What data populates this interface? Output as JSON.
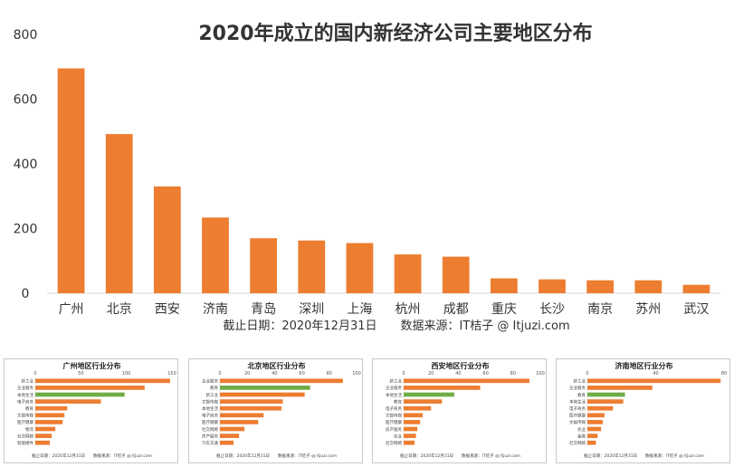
{
  "chart_data": [
    {
      "type": "bar",
      "title": "2020年成立的国内新经济公司主要地区分布",
      "categories": [
        "广州",
        "北京",
        "西安",
        "济南",
        "青岛",
        "深圳",
        "上海",
        "杭州",
        "成都",
        "重庆",
        "长沙",
        "南京",
        "苏州",
        "武汉"
      ],
      "values": [
        695,
        492,
        330,
        234,
        170,
        163,
        155,
        120,
        113,
        46,
        43,
        40,
        40,
        26
      ],
      "ylim": [
        0,
        800
      ],
      "yticks": [
        0,
        200,
        400,
        600,
        800
      ],
      "xlabel": "",
      "ylabel": "",
      "footnote": "截止日期：2020年12月31日　　数据来源：IT桔子 @ Itjuzi.com",
      "colors": {
        "bar": "#ED7D31"
      }
    },
    {
      "type": "bar",
      "orientation": "horizontal",
      "title": "广州地区行业分布",
      "categories": [
        "新工业",
        "企业服务",
        "本地生活",
        "电子商务",
        "教育",
        "文娱传媒",
        "医疗健康",
        "物流",
        "社交网络",
        "智能硬件"
      ],
      "values": [
        148,
        120,
        98,
        72,
        35,
        32,
        30,
        22,
        18,
        16
      ],
      "highlight": 2,
      "xlim": [
        0,
        150
      ],
      "xticks": [
        0,
        50,
        100,
        150
      ],
      "footnote": "截止日期：2020年12月31日　　数据来源：IT桔子 @ Itjuzi.com"
    },
    {
      "type": "bar",
      "orientation": "horizontal",
      "title": "北京地区行业分布",
      "categories": [
        "企业服务",
        "教育",
        "新工业",
        "文娱传媒",
        "本地生活",
        "电子商务",
        "医疗健康",
        "社交网络",
        "房产服务",
        "汽车交通"
      ],
      "values": [
        90,
        66,
        62,
        46,
        45,
        32,
        28,
        18,
        14,
        10
      ],
      "highlight": 1,
      "xlim": [
        0,
        100
      ],
      "xticks": [
        0,
        20,
        40,
        60,
        80,
        100
      ],
      "footnote": "截止日期：2020年12月31日　　数据来源：IT桔子 @ Itjuzi.com"
    },
    {
      "type": "bar",
      "orientation": "horizontal",
      "title": "西安地区行业分布",
      "categories": [
        "新工业",
        "企业服务",
        "本地生活",
        "教育",
        "电子商务",
        "文娱传媒",
        "医疗健康",
        "房产服务",
        "农业",
        "社交网络"
      ],
      "values": [
        92,
        56,
        37,
        28,
        20,
        14,
        12,
        10,
        9,
        8
      ],
      "highlight": 2,
      "xlim": [
        0,
        100
      ],
      "xticks": [
        0,
        20,
        40,
        60,
        80,
        100
      ],
      "footnote": "截止日期：2020年12月31日　　数据来源：IT桔子 @ Itjuzi.com"
    },
    {
      "type": "bar",
      "orientation": "horizontal",
      "title": "济南地区行业分布",
      "categories": [
        "新工业",
        "企业服务",
        "教育",
        "本地生活",
        "电子商务",
        "医疗健康",
        "文娱传媒",
        "农业",
        "金融",
        "社交网络"
      ],
      "values": [
        78,
        38,
        22,
        21,
        15,
        10,
        9,
        8,
        6,
        5
      ],
      "highlight": 2,
      "xlim": [
        0,
        80
      ],
      "xticks": [
        0,
        40,
        80
      ],
      "footnote": "截止日期：2020年12月31日　　数据来源：IT桔子 @ Itjuzi.com"
    }
  ],
  "colors": {
    "bar": "#ED7D31",
    "highlight": "#70AD47",
    "text": "#404040",
    "axis": "#d9d9d9"
  }
}
